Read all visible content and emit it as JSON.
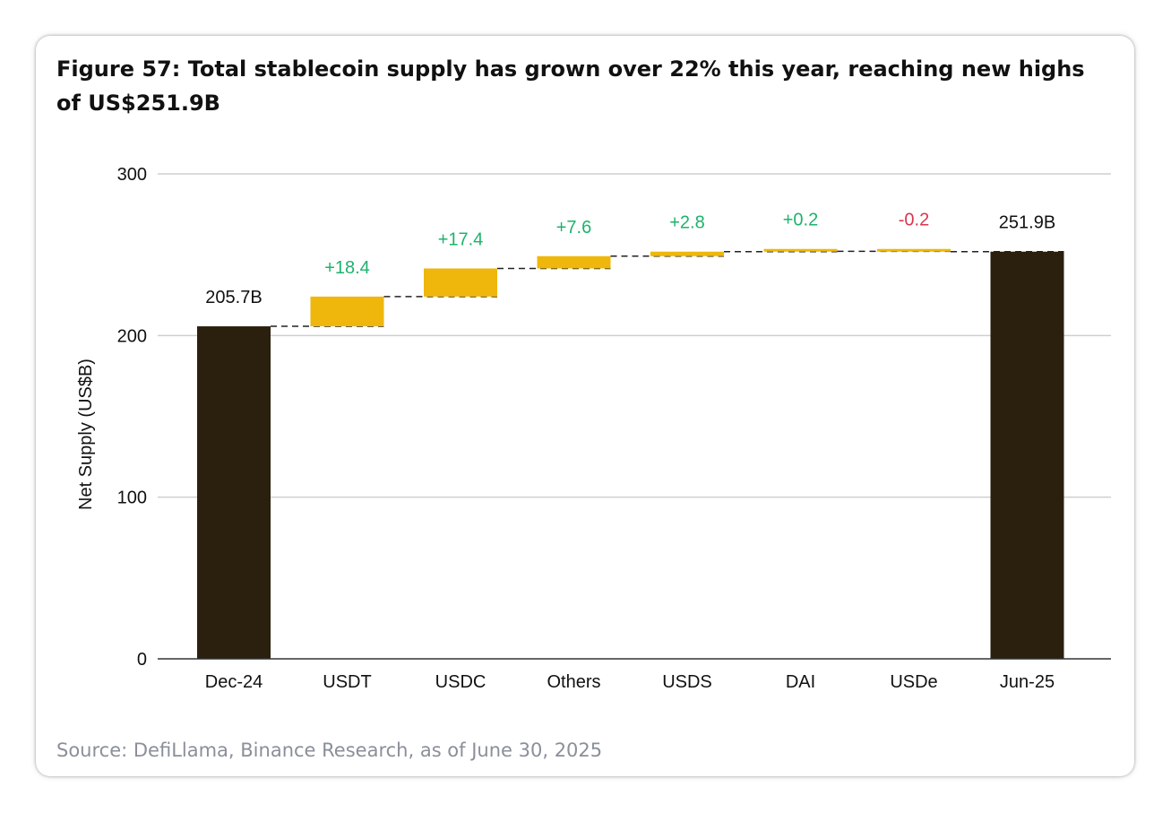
{
  "header": {
    "title": "Figure 57: Total stablecoin supply has grown over 22% this year, reaching new highs of US$251.9B"
  },
  "footer": {
    "source": "Source: DefiLlama, Binance Research, as of June 30, 2025"
  },
  "colors": {
    "total_bar": "#2b1f0e",
    "change_bar": "#efb70b",
    "positive_label": "#1db36b",
    "negative_label": "#d9354f",
    "total_label": "#111111",
    "gridline": "#cfcfcf",
    "connector": "#222222"
  },
  "chart_data": {
    "type": "bar",
    "subtype": "waterfall",
    "categories": [
      "Dec-24",
      "USDT",
      "USDC",
      "Others",
      "USDS",
      "DAI",
      "USDe",
      "Jun-25"
    ],
    "steps": [
      {
        "category": "Dec-24",
        "kind": "total",
        "value": 205.7,
        "label": "205.7B"
      },
      {
        "category": "USDT",
        "kind": "delta",
        "value": 18.4,
        "label": "+18.4"
      },
      {
        "category": "USDC",
        "kind": "delta",
        "value": 17.4,
        "label": "+17.4"
      },
      {
        "category": "Others",
        "kind": "delta",
        "value": 7.6,
        "label": "+7.6"
      },
      {
        "category": "USDS",
        "kind": "delta",
        "value": 2.8,
        "label": "+2.8"
      },
      {
        "category": "DAI",
        "kind": "delta",
        "value": 0.2,
        "label": "+0.2"
      },
      {
        "category": "USDe",
        "kind": "delta",
        "value": -0.2,
        "label": "-0.2"
      },
      {
        "category": "Jun-25",
        "kind": "total",
        "value": 251.9,
        "label": "251.9B"
      }
    ],
    "title": "Figure 57: Total stablecoin supply has grown over 22% this year, reaching new highs of US$251.9B",
    "xlabel": "",
    "ylabel": "Net Supply (US$B)",
    "ylim": [
      0,
      300
    ],
    "yticks": [
      0,
      100,
      200,
      300
    ],
    "grid": true,
    "legend": "none"
  }
}
